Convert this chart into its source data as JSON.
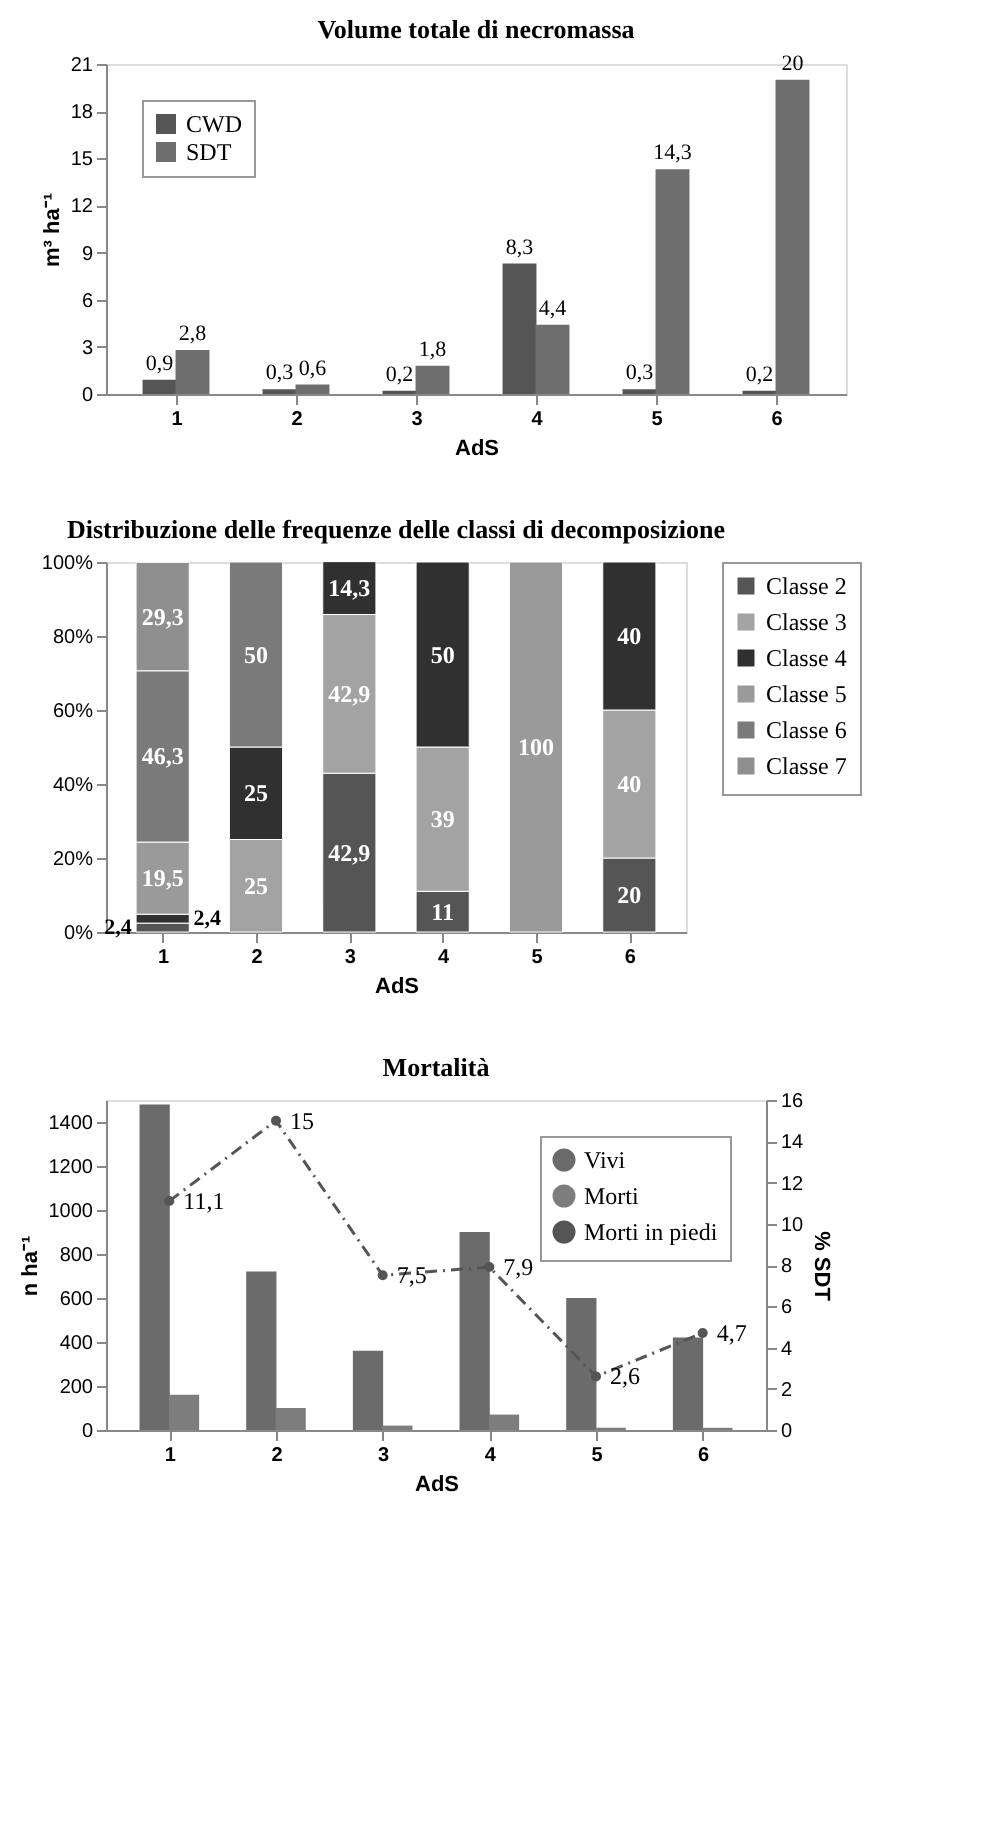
{
  "chart_data": [
    {
      "type": "bar",
      "title": "Volume totale di necromassa",
      "xlabel": "AdS",
      "ylabel": "m³ ha⁻¹",
      "categories": [
        "1",
        "2",
        "3",
        "4",
        "5",
        "6"
      ],
      "series": [
        {
          "name": "CWD",
          "color": "#555555",
          "values": [
            0.9,
            0.3,
            0.2,
            8.3,
            0.3,
            0.2
          ],
          "value_labels": [
            "0,9",
            "0,3",
            "0,2",
            "8,3",
            "0,3",
            "0,2"
          ]
        },
        {
          "name": "SDT",
          "color": "#6e6e6e",
          "values": [
            2.8,
            0.6,
            1.8,
            4.4,
            14.3,
            20
          ],
          "value_labels": [
            "2,8",
            "0,6",
            "1,8",
            "4,4",
            "14,3",
            "20"
          ]
        }
      ],
      "ylim": [
        0,
        21
      ],
      "yticks": [
        0,
        3,
        6,
        9,
        12,
        15,
        18,
        21
      ],
      "legend": "top left"
    },
    {
      "type": "bar",
      "stacked": true,
      "title": "Distribuzione delle frequenze delle classi di decomposizione",
      "xlabel": "AdS",
      "categories": [
        "1",
        "2",
        "3",
        "4",
        "5",
        "6"
      ],
      "series": [
        {
          "name": "Classe 2",
          "color": "#555555",
          "values": [
            2.4,
            null,
            42.9,
            11,
            null,
            20
          ],
          "value_labels": [
            "2,4",
            null,
            "42,9",
            "11",
            null,
            "20"
          ]
        },
        {
          "name": "Classe 3",
          "color": "#a3a3a3",
          "values": [
            null,
            25,
            42.9,
            39,
            null,
            40
          ],
          "value_labels": [
            null,
            "25",
            "42,9",
            "39",
            null,
            "40"
          ]
        },
        {
          "name": "Classe 4",
          "color": "#303030",
          "values": [
            2.4,
            25,
            14.3,
            50,
            null,
            40
          ],
          "value_labels": [
            "2,4",
            "25",
            "14,3",
            "50",
            null,
            "40"
          ]
        },
        {
          "name": "Classe 5",
          "color": "#9a9a9a",
          "values": [
            19.5,
            null,
            null,
            null,
            100,
            null
          ],
          "value_labels": [
            "19,5",
            null,
            null,
            null,
            "100",
            null
          ]
        },
        {
          "name": "Classe 6",
          "color": "#7a7a7a",
          "values": [
            46.3,
            50,
            null,
            null,
            null,
            null
          ],
          "value_labels": [
            "46,3",
            "50",
            null,
            null,
            null,
            null
          ]
        },
        {
          "name": "Classe 7",
          "color": "#8f8f8f",
          "values": [
            29.3,
            null,
            null,
            null,
            null,
            null
          ],
          "value_labels": [
            "29,3",
            null,
            null,
            null,
            null,
            null
          ]
        }
      ],
      "ylim": [
        0,
        100
      ],
      "yticks": [
        {
          "value": 0,
          "label": "0%"
        },
        {
          "value": 20,
          "label": "20%"
        },
        {
          "value": 40,
          "label": "40%"
        },
        {
          "value": 60,
          "label": "60%"
        },
        {
          "value": 80,
          "label": "80%"
        },
        {
          "value": 100,
          "label": "100%"
        }
      ],
      "legend": "right"
    },
    {
      "type": "bar",
      "title": "Mortalità",
      "xlabel": "AdS",
      "ylabel": "n ha⁻¹",
      "y2label": "% SDT",
      "categories": [
        "1",
        "2",
        "3",
        "4",
        "5",
        "6"
      ],
      "series": [
        {
          "name": "Vivi",
          "color": "#6b6b6b",
          "values": [
            1480,
            720,
            360,
            900,
            600,
            420
          ]
        },
        {
          "name": "Morti",
          "color": "#7d7d7d",
          "values": [
            160,
            100,
            20,
            70,
            10,
            10
          ]
        },
        {
          "name": "Morti in piedi",
          "type": "line",
          "axis": "y2",
          "color": "#555555",
          "marker": "circle",
          "line_style": "dashed",
          "values": [
            11.1,
            15,
            7.5,
            7.9,
            2.6,
            4.7
          ],
          "value_labels": [
            "11,1",
            "15",
            "7,5",
            "7,9",
            "2,6",
            "4,7"
          ]
        }
      ],
      "ylim": [
        0,
        1500
      ],
      "yticks": [
        0,
        200,
        400,
        600,
        800,
        1000,
        1200,
        1400
      ],
      "y2lim": [
        0,
        16
      ],
      "y2ticks": [
        0,
        2,
        4,
        6,
        8,
        10,
        12,
        14,
        16
      ],
      "legend": "top right"
    }
  ]
}
